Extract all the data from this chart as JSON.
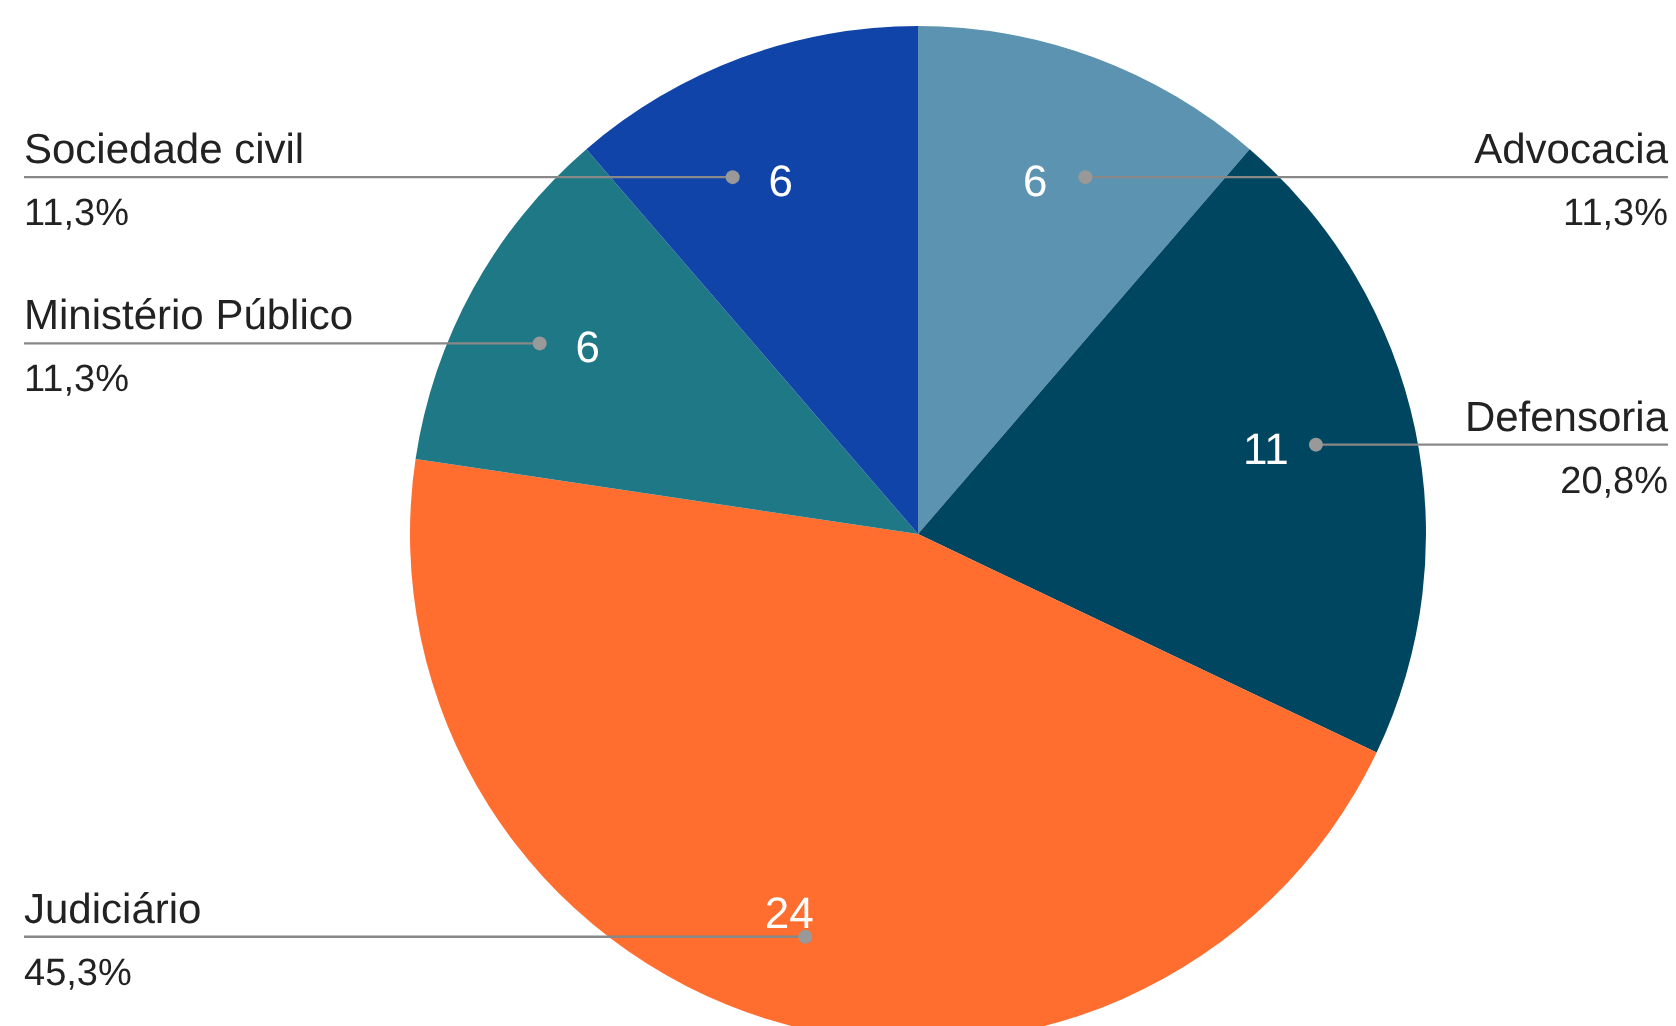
{
  "chart_data": {
    "type": "pie",
    "categories": [
      "Advocacia",
      "Defensoria",
      "Judiciário",
      "Ministério Público",
      "Sociedade civil"
    ],
    "values": [
      6,
      11,
      24,
      6,
      6
    ],
    "colors": [
      "#5b93b0",
      "#004661",
      "#ff6d2f",
      "#1f7886",
      "#1144a8"
    ],
    "data_labels": true,
    "annotations": [
      "11,3%",
      "20,8%",
      "45,3%",
      "11,3%",
      "11,3%"
    ]
  }
}
